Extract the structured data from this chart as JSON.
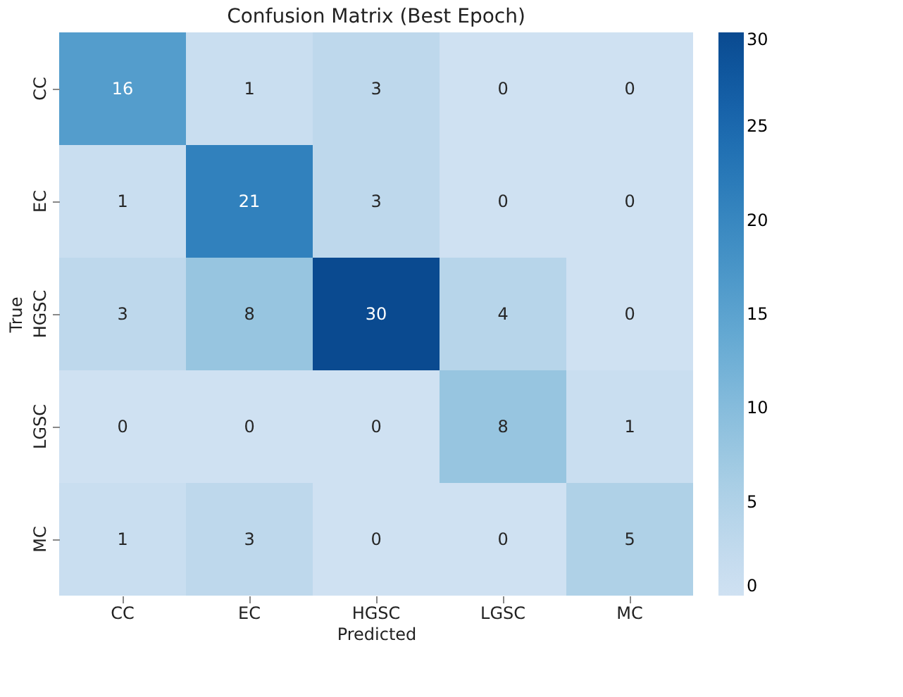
{
  "chart_data": {
    "type": "heatmap",
    "title": "Confusion Matrix (Best Epoch)",
    "xlabel": "Predicted",
    "ylabel": "True",
    "categories": [
      "CC",
      "EC",
      "HGSC",
      "LGSC",
      "MC"
    ],
    "y_categories": [
      "CC",
      "EC",
      "HGSC",
      "LGSC",
      "MC"
    ],
    "cells": [
      [
        16,
        1,
        3,
        0,
        0
      ],
      [
        1,
        21,
        3,
        0,
        0
      ],
      [
        3,
        8,
        30,
        4,
        0
      ],
      [
        0,
        0,
        0,
        8,
        1
      ],
      [
        1,
        3,
        0,
        0,
        5
      ]
    ],
    "clim": [
      0,
      30
    ],
    "cticks": [
      0,
      5,
      10,
      15,
      20,
      25,
      30
    ],
    "data_labels": true,
    "grid": false
  }
}
